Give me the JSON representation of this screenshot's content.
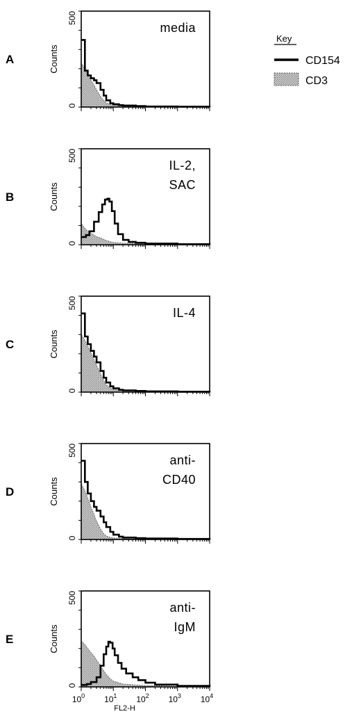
{
  "key": {
    "title": "Key",
    "entries": [
      {
        "label": "CD154",
        "style": "line",
        "color": "#000000"
      },
      {
        "label": "CD3",
        "style": "fill",
        "color": "#bdbdbd"
      }
    ]
  },
  "chart_data": [
    {
      "type": "area",
      "panel": "A",
      "title_lines": [
        "media"
      ],
      "ylabel": "Counts",
      "xlabel": "",
      "ylim": [
        0,
        500
      ],
      "yticks": [
        "500",
        "0"
      ],
      "x_scale": "log",
      "xlim": [
        1,
        10000
      ],
      "x_ticklabels": [],
      "series": [
        {
          "name": "CD154",
          "style": "line",
          "x": [
            1,
            1.3,
            1.6,
            2,
            2.5,
            3,
            4,
            5,
            6,
            8,
            10,
            15,
            20,
            50,
            100,
            1000,
            10000
          ],
          "values": [
            350,
            190,
            165,
            150,
            140,
            125,
            90,
            60,
            35,
            20,
            15,
            10,
            8,
            5,
            3,
            2,
            1
          ]
        },
        {
          "name": "CD3",
          "style": "fill",
          "x": [
            1,
            1.3,
            1.6,
            2,
            2.5,
            3,
            4,
            5,
            6,
            8,
            10,
            20,
            100,
            1000,
            10000
          ],
          "values": [
            230,
            200,
            170,
            140,
            115,
            90,
            55,
            35,
            22,
            14,
            10,
            6,
            4,
            2,
            1
          ]
        }
      ]
    },
    {
      "type": "area",
      "panel": "B",
      "title_lines": [
        "IL-2,",
        "SAC"
      ],
      "ylabel": "Counts",
      "xlabel": "",
      "ylim": [
        0,
        500
      ],
      "yticks": [
        "500",
        "0"
      ],
      "x_scale": "log",
      "xlim": [
        1,
        10000
      ],
      "x_ticklabels": [],
      "series": [
        {
          "name": "CD154",
          "style": "line",
          "x": [
            1,
            1.4,
            1.8,
            2.5,
            3.5,
            4.5,
            5.5,
            6.5,
            7.5,
            9,
            11,
            14,
            20,
            30,
            50,
            100,
            1000,
            10000
          ],
          "values": [
            40,
            50,
            70,
            120,
            170,
            210,
            235,
            240,
            225,
            175,
            110,
            55,
            25,
            15,
            10,
            6,
            3,
            1
          ]
        },
        {
          "name": "CD3",
          "style": "fill",
          "x": [
            1,
            1.3,
            1.6,
            2,
            2.5,
            3,
            4,
            5,
            6,
            8,
            10,
            20,
            100,
            1000,
            10000
          ],
          "values": [
            110,
            85,
            70,
            60,
            50,
            42,
            35,
            28,
            22,
            16,
            12,
            8,
            5,
            3,
            1
          ]
        }
      ]
    },
    {
      "type": "area",
      "panel": "C",
      "title_lines": [
        "IL-4"
      ],
      "ylabel": "Counts",
      "xlabel": "",
      "ylim": [
        0,
        500
      ],
      "yticks": [
        "500",
        "0"
      ],
      "x_scale": "log",
      "xlim": [
        1,
        10000
      ],
      "x_ticklabels": [],
      "series": [
        {
          "name": "CD154",
          "style": "line",
          "x": [
            1,
            1.3,
            1.6,
            2,
            2.5,
            3,
            4,
            5,
            6,
            8,
            10,
            15,
            20,
            50,
            100,
            1000,
            10000
          ],
          "values": [
            410,
            290,
            250,
            215,
            185,
            155,
            110,
            75,
            50,
            30,
            20,
            12,
            9,
            6,
            4,
            2,
            1
          ]
        },
        {
          "name": "CD3",
          "style": "fill",
          "x": [
            1,
            1.3,
            1.6,
            2,
            2.5,
            3,
            4,
            5,
            6,
            8,
            10,
            20,
            100,
            1000,
            10000
          ],
          "values": [
            300,
            270,
            240,
            205,
            170,
            140,
            95,
            60,
            38,
            22,
            15,
            8,
            5,
            2,
            1
          ]
        }
      ]
    },
    {
      "type": "area",
      "panel": "D",
      "title_lines": [
        "anti-",
        "CD40"
      ],
      "ylabel": "Counts",
      "xlabel": "",
      "ylim": [
        0,
        500
      ],
      "yticks": [
        "500",
        "0"
      ],
      "x_scale": "log",
      "xlim": [
        1,
        10000
      ],
      "x_ticklabels": [],
      "series": [
        {
          "name": "CD154",
          "style": "line",
          "x": [
            1,
            1.3,
            1.6,
            2,
            2.5,
            3,
            4,
            5,
            6,
            8,
            10,
            15,
            20,
            50,
            100,
            1000,
            10000
          ],
          "values": [
            410,
            300,
            240,
            200,
            170,
            150,
            120,
            90,
            65,
            40,
            25,
            15,
            10,
            7,
            5,
            3,
            1
          ]
        },
        {
          "name": "CD3",
          "style": "fill",
          "x": [
            1,
            1.3,
            1.6,
            2,
            2.5,
            3,
            4,
            5,
            6,
            8,
            10,
            20,
            100,
            1000,
            10000
          ],
          "values": [
            290,
            255,
            215,
            170,
            130,
            95,
            55,
            30,
            18,
            11,
            8,
            5,
            3,
            2,
            1
          ]
        }
      ]
    },
    {
      "type": "area",
      "panel": "E",
      "title_lines": [
        "anti-",
        "IgM"
      ],
      "ylabel": "Counts",
      "xlabel": "FL2-H",
      "ylim": [
        0,
        500
      ],
      "yticks": [
        "500",
        "0"
      ],
      "x_scale": "log",
      "xlim": [
        1,
        10000
      ],
      "x_ticklabels": [
        {
          "base": "10",
          "exp": "0",
          "value": 1
        },
        {
          "base": "10",
          "exp": "1",
          "value": 10
        },
        {
          "base": "10",
          "exp": "2",
          "value": 100
        },
        {
          "base": "10",
          "exp": "3",
          "value": 1000
        },
        {
          "base": "10",
          "exp": "4",
          "value": 10000
        }
      ],
      "series": [
        {
          "name": "CD154",
          "style": "line",
          "x": [
            1,
            1.5,
            2,
            3,
            4,
            5,
            6,
            7,
            8,
            9.5,
            11,
            14,
            18,
            25,
            40,
            60,
            100,
            200,
            1000,
            10000
          ],
          "values": [
            10,
            15,
            25,
            50,
            110,
            170,
            210,
            235,
            230,
            200,
            165,
            125,
            95,
            70,
            50,
            35,
            22,
            12,
            5,
            1
          ]
        },
        {
          "name": "CD3",
          "style": "fill",
          "x": [
            1,
            1.3,
            1.6,
            2,
            2.5,
            3,
            4,
            5,
            6,
            8,
            10,
            20,
            50,
            100,
            1000,
            10000
          ],
          "values": [
            240,
            220,
            200,
            180,
            160,
            140,
            110,
            85,
            65,
            42,
            30,
            15,
            10,
            7,
            3,
            1
          ]
        }
      ]
    }
  ]
}
